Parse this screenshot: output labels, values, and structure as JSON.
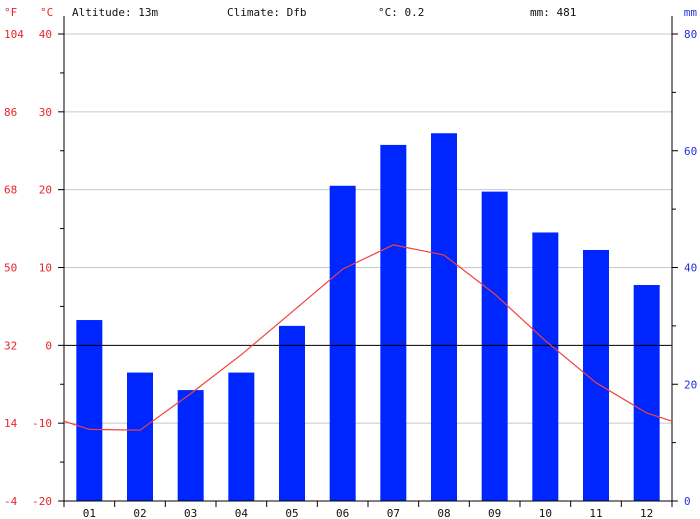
{
  "header": {
    "f_unit": "°F",
    "c_unit": "°C",
    "mm_unit": "mm",
    "altitude": "Altitude: 13m",
    "climate": "Climate: Dfb",
    "avg_temp": "°C: 0.2",
    "precip_total": "mm: 481"
  },
  "colors": {
    "bars": "#0026ff",
    "temperature_line": "#f04040",
    "left_axis_text": "#e8252a",
    "right_axis_text": "#2233dd",
    "grid": "#c8c8c8"
  },
  "chart_data": {
    "type": "bar",
    "categories": [
      "01",
      "02",
      "03",
      "04",
      "05",
      "06",
      "07",
      "08",
      "09",
      "10",
      "11",
      "12"
    ],
    "series": [
      {
        "type": "bar",
        "axis": "right",
        "values": [
          31,
          22,
          19,
          22,
          30,
          54,
          61,
          63,
          53,
          46,
          43,
          37
        ]
      },
      {
        "type": "line",
        "axis": "left",
        "values": [
          -10.8,
          -10.9,
          -6.2,
          -1.2,
          4.3,
          9.8,
          12.9,
          11.6,
          6.6,
          0.6,
          -4.8,
          -8.7
        ]
      }
    ],
    "axes": {
      "left_c": {
        "ylim": [
          -20,
          40
        ],
        "ticks": [
          -20,
          -10,
          0,
          10,
          20,
          30,
          40
        ]
      },
      "left_f": {
        "ticks": [
          -4,
          14,
          32,
          50,
          68,
          86,
          104
        ]
      },
      "right_mm": {
        "ylim": [
          0,
          80
        ],
        "ticks": [
          0,
          20,
          40,
          60,
          80
        ]
      }
    },
    "grid": true
  }
}
